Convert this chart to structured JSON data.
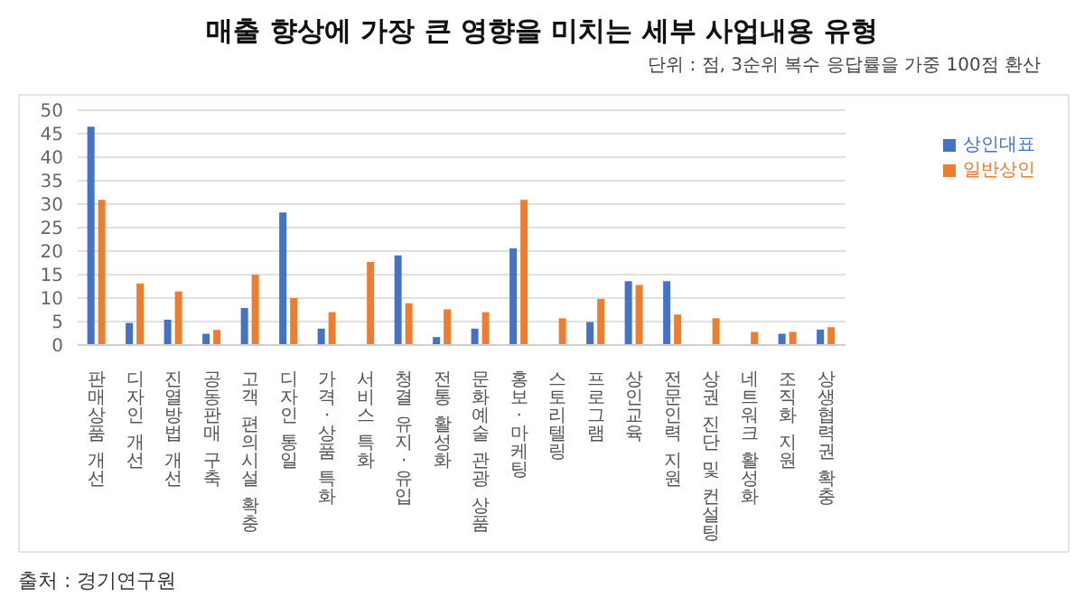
{
  "chart_data": {
    "type": "bar",
    "title": "매출 향상에 가장 큰 영향을 미치는 세부 사업내용 유형",
    "subtitle": "단위 : 점, 3순위 복수 응답률을 가중 100점 환산",
    "categories": [
      "판매상품 개선",
      "디자인 개선",
      "진열방법 개선",
      "공동판매 구축",
      "고객 편의시설 확충",
      "디자인 통일",
      "가격·상품 특화",
      "서비스 특화",
      "청결 유지·유입",
      "전통 활성화",
      "문화예술 관광 상품",
      "홍보·마케팅",
      "스토리텔링",
      "프로그램",
      "상인교육",
      "전문인력 지원",
      "상권 진단 및 컨설팅",
      "네트워크 활성화",
      "조직화 지원",
      "상생협력권 확충"
    ],
    "series": [
      {
        "name": "상인대표",
        "color": "#4472c4",
        "values": [
          46.5,
          4.7,
          5.4,
          2.4,
          7.9,
          28.2,
          3.5,
          null,
          19.1,
          1.7,
          3.5,
          20.6,
          null,
          4.9,
          13.6,
          13.6,
          null,
          null,
          2.4,
          3.3
        ]
      },
      {
        "name": "일반상인",
        "color": "#ed7d31",
        "values": [
          30.9,
          13.1,
          11.4,
          3.2,
          15,
          10,
          7,
          17.7,
          8.9,
          7.6,
          7,
          30.9,
          5.7,
          9.8,
          12.8,
          6.5,
          5.7,
          2.8,
          2.8,
          3.8
        ]
      }
    ],
    "ylim": [
      0,
      50
    ],
    "yticks": [
      0,
      5,
      10,
      15,
      20,
      25,
      30,
      35,
      40,
      45,
      50
    ],
    "grid": "y",
    "legend": "top right",
    "annotations": [
      "출처 : 경기연구원"
    ]
  }
}
